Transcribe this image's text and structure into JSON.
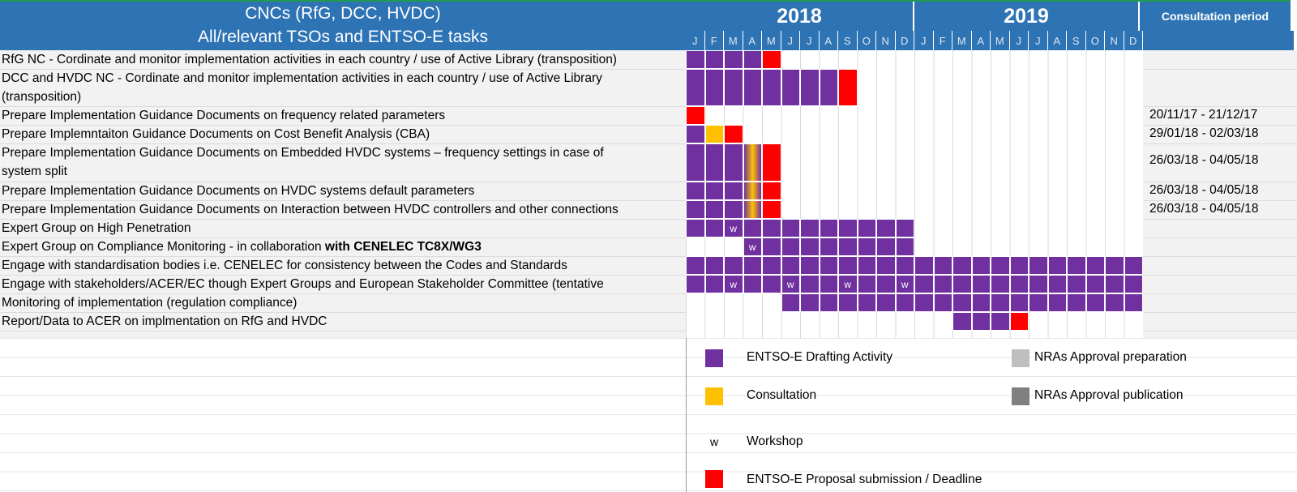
{
  "header": {
    "title_line1": "CNCs (RfG, DCC, HVDC)",
    "title_line2": "All/relevant TSOs and ENTSO-E tasks",
    "years": [
      "2018",
      "2019"
    ],
    "consultation_label": "Consultation period",
    "months": [
      "J",
      "F",
      "M",
      "A",
      "M",
      "J",
      "J",
      "A",
      "S",
      "O",
      "N",
      "D",
      "J",
      "F",
      "M",
      "A",
      "M",
      "J",
      "J",
      "A",
      "S",
      "O",
      "N",
      "D"
    ]
  },
  "tasks": [
    {
      "label": "RfG NC - Cordinate and monitor implementation activities in each country / use of Active Library (transposition)",
      "consultation": ""
    },
    {
      "label": "DCC and HVDC NC - Cordinate and monitor implementation activities in each country / use of Active Library",
      "label2": "(transposition)",
      "consultation": ""
    },
    {
      "label": "Prepare Implementation Guidance Documents on frequency related parameters",
      "consultation": "20/11/17 - 21/12/17"
    },
    {
      "label": "Prepare Implemntaiton Guidance Documents on Cost Benefit Analysis (CBA)",
      "consultation": "29/01/18 - 02/03/18"
    },
    {
      "label": "Prepare Implementation Guidance Documents on Embedded HVDC systems – frequency settings in case of",
      "label2": "system split",
      "consultation": "26/03/18 - 04/05/18"
    },
    {
      "label": "Prepare Implementation Guidance Documents on HVDC systems default parameters",
      "consultation": "26/03/18 - 04/05/18"
    },
    {
      "label": "Prepare Implementation Guidance Documents on Interaction between HVDC controllers and other connections",
      "consultation": "26/03/18 - 04/05/18"
    },
    {
      "label": "Expert Group on High Penetration",
      "consultation": ""
    },
    {
      "label": "Expert Group on Compliance Monitoring - in collaboration ",
      "label_bold": "with CENELEC TC8X/WG3",
      "consultation": ""
    },
    {
      "label": "Engage with standardisation bodies i.e. CENELEC for consistency between the Codes and Standards",
      "consultation": ""
    },
    {
      "label": "Engage with stakeholders/ACER/EC though Expert Groups and European Stakeholder Committee (tentative",
      "consultation": ""
    },
    {
      "label": "Monitoring of implementation (regulation compliance)",
      "consultation": ""
    },
    {
      "label": "Report/Data to ACER on implmentation on RfG and HVDC",
      "consultation": ""
    }
  ],
  "gantt": [
    {
      "purple": [
        0,
        1,
        2,
        3
      ],
      "red": [
        4
      ]
    },
    {
      "purple": [
        0,
        1,
        2,
        3,
        4,
        5,
        6,
        7
      ],
      "red": [
        8
      ]
    },
    {
      "red": [
        0
      ]
    },
    {
      "purple": [
        0
      ],
      "orange": [
        1
      ],
      "red": [
        2
      ]
    },
    {
      "purple": [
        0,
        1,
        2
      ],
      "gradient": [
        3
      ],
      "red": [
        4
      ]
    },
    {
      "purple": [
        0,
        1,
        2
      ],
      "gradient": [
        3
      ],
      "red": [
        4
      ]
    },
    {
      "purple": [
        0,
        1,
        2
      ],
      "gradient": [
        3
      ],
      "red": [
        4
      ]
    },
    {
      "purple": [
        0,
        1,
        2,
        3,
        4,
        5,
        6,
        7,
        8,
        9,
        10,
        11
      ],
      "workshop": [
        2
      ]
    },
    {
      "purple": [
        3,
        4,
        5,
        6,
        7,
        8,
        9,
        10,
        11
      ],
      "workshop": [
        3
      ]
    },
    {
      "purple": [
        0,
        1,
        2,
        3,
        4,
        5,
        6,
        7,
        8,
        9,
        10,
        11,
        12,
        13,
        14,
        15,
        16,
        17,
        18,
        19,
        20,
        21,
        22,
        23
      ]
    },
    {
      "purple": [
        0,
        1,
        2,
        3,
        4,
        5,
        6,
        7,
        8,
        9,
        10,
        11,
        12,
        13,
        14,
        15,
        16,
        17,
        18,
        19,
        20,
        21,
        22,
        23
      ],
      "workshop": [
        2,
        5,
        8,
        11
      ]
    },
    {
      "purple": [
        5,
        6,
        7,
        8,
        9,
        10,
        11,
        12,
        13,
        14,
        15,
        16,
        17,
        18,
        19,
        20,
        21,
        22,
        23
      ]
    },
    {
      "purple": [
        14,
        15,
        16
      ],
      "red": [
        17
      ]
    }
  ],
  "workshop_mark": "w",
  "legend": {
    "drafting": "ENTSO-E Drafting Activity",
    "consultation": "Consultation",
    "workshop_symbol": "w",
    "workshop": "Workshop",
    "deadline": "ENTSO-E Proposal submission / Deadline",
    "nras_prep": "NRAs Approval preparation",
    "nras_pub": "NRAs Approval publication"
  },
  "colors": {
    "header_blue": "#2e74b5",
    "drafting": "#7030a0",
    "consultation": "#ffc000",
    "deadline": "#ff0000",
    "nras_prep": "#bfbfbf",
    "nras_pub": "#808080"
  }
}
